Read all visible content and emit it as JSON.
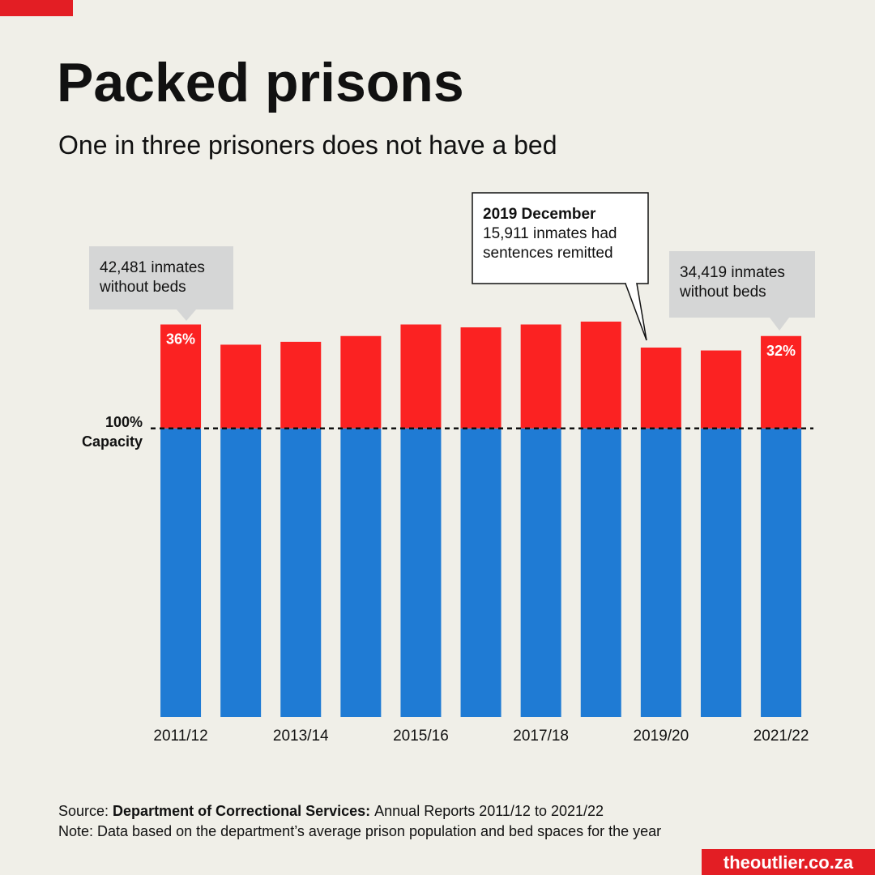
{
  "chart_data": {
    "type": "bar",
    "title": "Packed prisons",
    "subtitle": "One in three prisoners does not have a bed",
    "categories": [
      "2011/12",
      null,
      "2013/14",
      null,
      "2015/16",
      null,
      "2017/18",
      null,
      "2019/20",
      null,
      "2021/22"
    ],
    "series": [
      {
        "color": "#1f7bd4",
        "values": [
          100,
          100,
          100,
          100,
          100,
          100,
          100,
          100,
          100,
          100,
          100
        ]
      },
      {
        "color": "#fb2222",
        "values": [
          36,
          29,
          30,
          32,
          36,
          35,
          36,
          37,
          28,
          27,
          32
        ],
        "value_labels": [
          "36%",
          null,
          null,
          null,
          null,
          null,
          null,
          null,
          null,
          null,
          "32%"
        ]
      }
    ],
    "ylim": [
      0,
      160
    ],
    "capacity_line": {
      "value": 100,
      "label": [
        "100%",
        "Capacity"
      ]
    },
    "annotations": [
      {
        "lines": [
          "42,481 inmates",
          "without beds"
        ]
      },
      {
        "title": "2019 December",
        "lines": [
          "15,911 inmates had",
          "sentences remitted"
        ]
      },
      {
        "lines": [
          "34,419 inmates",
          "without beds"
        ]
      }
    ],
    "source": {
      "label": "Source:",
      "bold": "Department of Correctional Services:",
      "text": "Annual Reports 2011/12 to 2021/22"
    },
    "note": "Note: Data based on the department’s average prison population and bed spaces for the year",
    "brand": "theoutlier.co.za"
  }
}
